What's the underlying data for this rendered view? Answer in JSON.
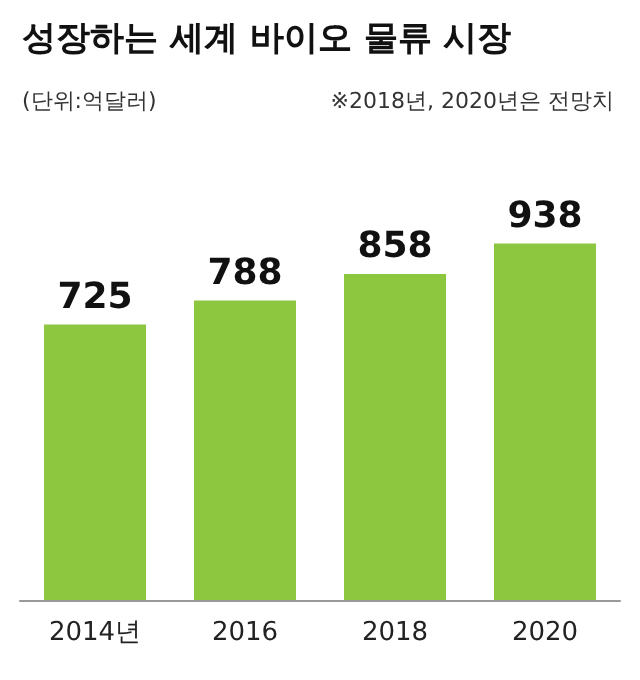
{
  "chart_data": {
    "type": "bar",
    "title": "성장하는 세계 바이오 물류 시장",
    "subtitle": "(단위:억달러)",
    "annotations": [
      "※2018년, 2020년은 전망치"
    ],
    "categories": [
      "2014년",
      "2016",
      "2018",
      "2020"
    ],
    "values": [
      725,
      788,
      858,
      938
    ],
    "color": "#8dc63f",
    "data_labels": true,
    "grid": false
  }
}
